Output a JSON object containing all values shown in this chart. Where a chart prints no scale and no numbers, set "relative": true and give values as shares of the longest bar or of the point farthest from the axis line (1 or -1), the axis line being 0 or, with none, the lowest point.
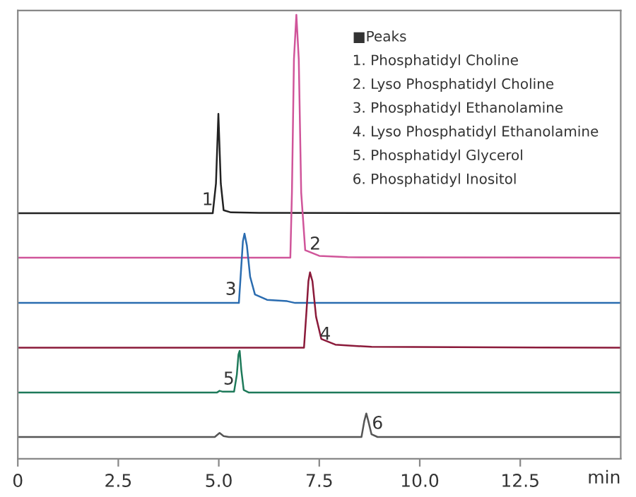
{
  "chart_data": {
    "type": "line",
    "relative": true,
    "xlabel": "min",
    "xlim": [
      0,
      15
    ],
    "xticks": [
      0,
      2.5,
      {
        "value": 5,
        "label": "5.0"
      },
      7.5,
      {
        "value": 10,
        "label": "10.0"
      },
      12.5
    ],
    "grid": false,
    "marker": "none",
    "line_style": "solid",
    "series": [
      {
        "color": "#222222",
        "x": [
          0,
          4.85,
          4.93,
          4.99,
          5.05,
          5.12,
          5.3,
          6.0,
          15
        ],
        "values": [
          0.553,
          0.553,
          0.62,
          0.777,
          0.62,
          0.56,
          0.555,
          0.554,
          0.553
        ]
      },
      {
        "color": "#d0559a",
        "x": [
          0,
          6.78,
          6.82,
          6.87,
          6.93,
          6.99,
          7.05,
          7.15,
          7.5,
          8.2,
          15
        ],
        "values": [
          0.453,
          0.453,
          0.6,
          0.9,
          1.0,
          0.9,
          0.6,
          0.47,
          0.457,
          0.454,
          0.453
        ]
      },
      {
        "color": "#2a6cb0",
        "x": [
          0,
          5.5,
          5.55,
          5.6,
          5.64,
          5.7,
          5.78,
          5.9,
          6.2,
          6.7,
          6.9,
          15
        ],
        "values": [
          0.351,
          0.351,
          0.42,
          0.49,
          0.507,
          0.48,
          0.41,
          0.37,
          0.358,
          0.355,
          0.351,
          0.351
        ]
      },
      {
        "color": "#8b1a3a",
        "x": [
          0,
          7.12,
          7.18,
          7.23,
          7.27,
          7.33,
          7.42,
          7.55,
          7.9,
          8.8,
          15
        ],
        "values": [
          0.25,
          0.25,
          0.33,
          0.4,
          0.42,
          0.4,
          0.32,
          0.27,
          0.257,
          0.252,
          0.25
        ]
      },
      {
        "color": "#1e7a5a",
        "x": [
          0,
          4.95,
          5.02,
          5.1,
          5.38,
          5.45,
          5.49,
          5.52,
          5.56,
          5.62,
          5.75,
          15
        ],
        "values": [
          0.149,
          0.149,
          0.153,
          0.151,
          0.151,
          0.19,
          0.235,
          0.243,
          0.2,
          0.155,
          0.149,
          0.149
        ]
      },
      {
        "color": "#555555",
        "x": [
          0,
          4.9,
          5.02,
          5.12,
          5.25,
          8.55,
          8.62,
          8.67,
          8.72,
          8.8,
          8.95,
          15
        ],
        "values": [
          0.049,
          0.049,
          0.058,
          0.051,
          0.049,
          0.049,
          0.085,
          0.102,
          0.085,
          0.055,
          0.049,
          0.049
        ]
      }
    ],
    "annotations": [
      {
        "text": "1",
        "x": 4.72,
        "y": 0.553
      },
      {
        "text": "2",
        "x": 7.4,
        "y": 0.453
      },
      {
        "text": "3",
        "x": 5.3,
        "y": 0.351
      },
      {
        "text": "4",
        "x": 7.65,
        "y": 0.25
      },
      {
        "text": "5",
        "x": 5.25,
        "y": 0.149
      },
      {
        "text": "6",
        "x": 8.95,
        "y": 0.049
      },
      "■Peaks",
      "1. Phosphatidyl Choline",
      "2. Lyso Phosphatidyl Choline",
      "3. Phosphatidyl Ethanolamine",
      "4. Lyso Phosphatidyl Ethanolamine",
      "5. Phosphatidyl Glycerol",
      "6. Phosphatidyl Inositol"
    ]
  }
}
